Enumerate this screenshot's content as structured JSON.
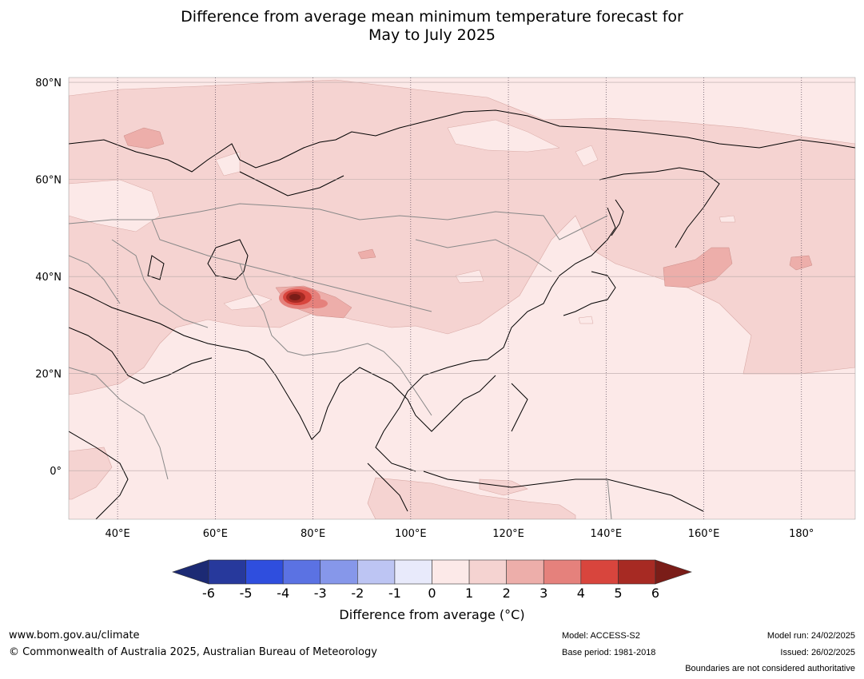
{
  "title": {
    "line1": "Difference from average mean minimum temperature forecast for",
    "line2": "May to July 2025"
  },
  "map": {
    "lat_labels": [
      "80°N",
      "60°N",
      "40°N",
      "20°N",
      "0°"
    ],
    "lon_labels": [
      "40°E",
      "60°E",
      "80°E",
      "100°E",
      "120°E",
      "140°E",
      "160°E",
      "180°"
    ],
    "lat_values": [
      80,
      60,
      40,
      20,
      0
    ],
    "lon_values": [
      40,
      60,
      80,
      100,
      120,
      140,
      160,
      180
    ],
    "lon_range": [
      30,
      191
    ],
    "lat_range": [
      -10,
      81
    ]
  },
  "colorbar": {
    "ticks": [
      "-6",
      "-5",
      "-4",
      "-3",
      "-2",
      "-1",
      "0",
      "1",
      "2",
      "3",
      "4",
      "5",
      "6"
    ],
    "colors": [
      "#27399c",
      "#2f4ede",
      "#5b72e3",
      "#8697ea",
      "#bdc5f3",
      "#e8eafb",
      "#fce9e8",
      "#f5d3d1",
      "#edaeaa",
      "#e5817c",
      "#d8453d",
      "#a72a23"
    ],
    "under_color": "#1c2a74",
    "over_color": "#7a1d18",
    "label": "Difference from average (",
    "label_unit": "°C)"
  },
  "footer": {
    "website": "www.bom.gov.au/climate",
    "copyright": "© Commonwealth of Australia 2025, Australian Bureau of Meteorology",
    "model": "Model: ACCESS-S2",
    "base_period": "Base period: 1981-2018",
    "model_run": "Model run: 24/02/2025",
    "issued": "Issued: 26/02/2025",
    "disclaimer": "Boundaries are not considered authoritative"
  }
}
